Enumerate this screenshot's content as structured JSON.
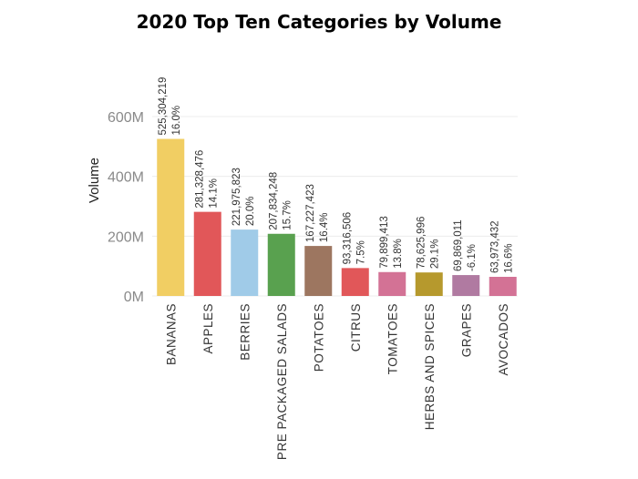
{
  "chart_data": {
    "type": "bar",
    "title": "2020 Top Ten Categories by Volume",
    "xlabel": "",
    "ylabel": "Volume",
    "ylim": [
      0,
      700000000
    ],
    "y_ticks": [
      0,
      200000000,
      400000000,
      600000000
    ],
    "y_tick_labels": [
      "0M",
      "200M",
      "400M",
      "600M"
    ],
    "grid": true,
    "categories": [
      "BANANAS",
      "APPLES",
      "BERRIES",
      "PRE PACKAGED SALADS",
      "POTATOES",
      "CITRUS",
      "TOMATOES",
      "HERBS AND SPICES",
      "GRAPES",
      "AVOCADOS"
    ],
    "values": [
      525304219,
      281328476,
      221975823,
      207834248,
      167227423,
      93316506,
      79899413,
      78625996,
      69869011,
      63973432
    ],
    "value_labels": [
      "525,304,219",
      "281,328,476",
      "221,975,823",
      "207,834,248",
      "167,227,423",
      "93,316,506",
      "79,899,413",
      "78,625,996",
      "69,869,011",
      "63,973,432"
    ],
    "change_labels": [
      "16.0%",
      "14.1%",
      "20.0%",
      "15.7%",
      "16.4%",
      "7.5%",
      "13.8%",
      "29.1%",
      "-6.1%",
      "16.6%"
    ],
    "colors": [
      "#f1ce63",
      "#e15759",
      "#a0cbe8",
      "#59a14f",
      "#9d7660",
      "#e15759",
      "#d37295",
      "#b6992d",
      "#b07aa1",
      "#d37295"
    ]
  }
}
